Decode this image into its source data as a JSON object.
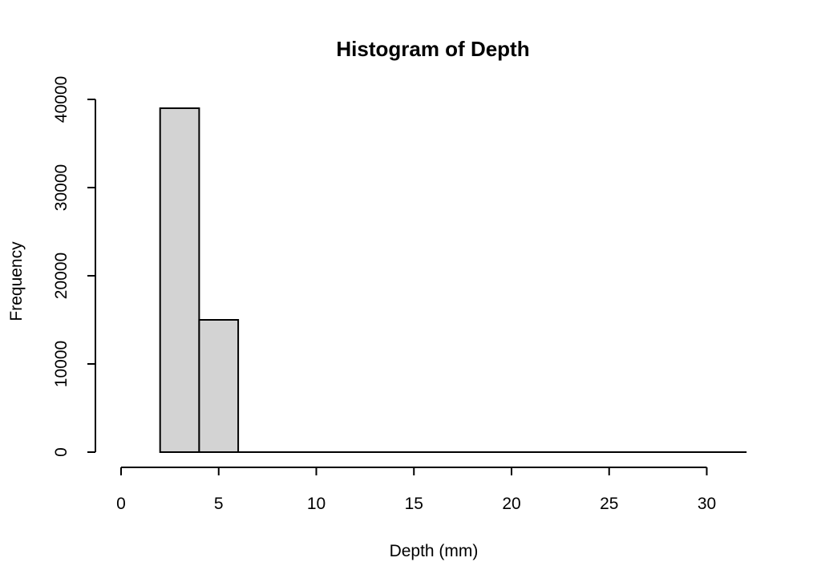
{
  "chart_data": {
    "type": "bar",
    "title": "Histogram of Depth",
    "xlabel": "Depth (mm)",
    "ylabel": "Frequency",
    "bins": [
      {
        "start": 2,
        "end": 4,
        "count": 39000
      },
      {
        "start": 4,
        "end": 6,
        "count": 15000
      },
      {
        "start": 6,
        "end": 8,
        "count": 0
      },
      {
        "start": 8,
        "end": 10,
        "count": 0
      },
      {
        "start": 10,
        "end": 12,
        "count": 0
      },
      {
        "start": 12,
        "end": 14,
        "count": 0
      },
      {
        "start": 14,
        "end": 16,
        "count": 0
      },
      {
        "start": 16,
        "end": 18,
        "count": 0
      },
      {
        "start": 18,
        "end": 20,
        "count": 0
      },
      {
        "start": 20,
        "end": 22,
        "count": 0
      },
      {
        "start": 22,
        "end": 24,
        "count": 0
      },
      {
        "start": 24,
        "end": 26,
        "count": 0
      },
      {
        "start": 26,
        "end": 28,
        "count": 0
      },
      {
        "start": 28,
        "end": 30,
        "count": 0
      },
      {
        "start": 30,
        "end": 32,
        "count": 0
      }
    ],
    "xlim": [
      0,
      32
    ],
    "ylim": [
      0,
      40000
    ],
    "x_ticks": [
      0,
      5,
      10,
      15,
      20,
      25,
      30
    ],
    "y_ticks": [
      0,
      10000,
      20000,
      30000,
      40000
    ],
    "bar_fill": "#d3d3d3",
    "bar_stroke": "#000000",
    "grid": false,
    "legend": "none"
  }
}
